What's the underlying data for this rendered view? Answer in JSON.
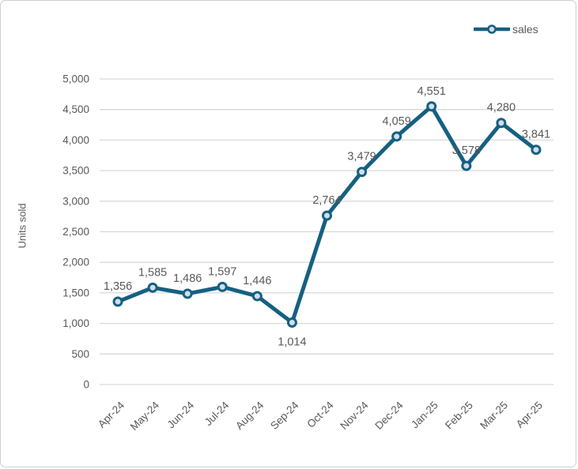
{
  "chart_data": {
    "type": "line",
    "ylabel": "Units sold",
    "xlabel": "",
    "ylim": [
      0,
      5000
    ],
    "ytick_step": 500,
    "grid": "horizontal",
    "legend_position": "top-right",
    "categories": [
      "Apr-24",
      "May-24",
      "Jun-24",
      "Jul-24",
      "Aug-24",
      "Sep-24",
      "Oct-24",
      "Nov-24",
      "Dec-24",
      "Jan-25",
      "Feb-25",
      "Mar-25",
      "Apr-25"
    ],
    "series": [
      {
        "name": "sales",
        "values": [
          1356,
          1585,
          1486,
          1597,
          1446,
          1014,
          2764,
          3479,
          4059,
          4551,
          3578,
          4280,
          3841
        ],
        "color": "#156082",
        "marker_fill": "#d3dee8"
      }
    ],
    "colors": {
      "gridline": "#d9d9d9",
      "axis_text": "#595959",
      "data_label_text": "#595959",
      "frame_border": "#cfcfcf"
    }
  }
}
